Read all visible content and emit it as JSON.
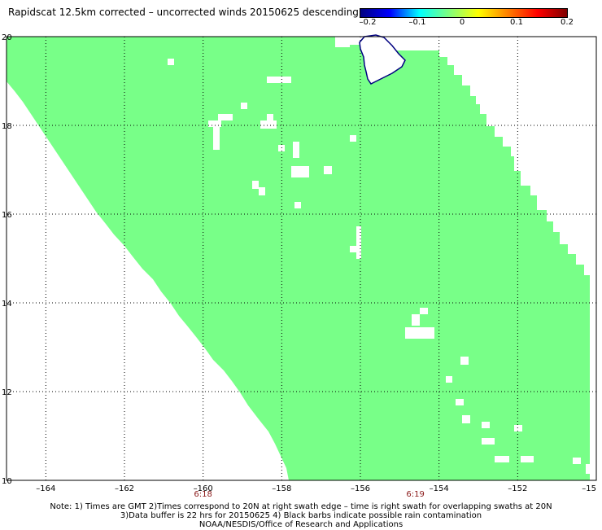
{
  "title": "Rapidscat 12.5km corrected – uncorrected winds 20150625 descending",
  "colorbar": {
    "labels": [
      "–0.2",
      "–0.1",
      "0",
      "0.1",
      "0.2"
    ],
    "gradient": [
      "#00007f",
      "#0000ff",
      "#00ffff",
      "#7fff7f",
      "#ffff00",
      "#ff7f00",
      "#ff0000",
      "#7f0000"
    ]
  },
  "colors": {
    "swath": "#78ff88",
    "land_outline": "#000080"
  },
  "map": {
    "lon_range": [
      -165,
      -150
    ],
    "lat_range": [
      10,
      20
    ],
    "x_ticks": [
      "–164",
      "–162",
      "–160",
      "–158",
      "–156",
      "–154",
      "–152",
      "–15"
    ],
    "y_ticks": [
      "10",
      "12",
      "14",
      "16",
      "18",
      "20"
    ],
    "time_labels": [
      {
        "text": "6:18",
        "lon": -160
      },
      {
        "text": "6:19",
        "lon": -154.6
      }
    ]
  },
  "notes": [
    "Note: 1) Times are GMT 2)Times correspond to 20N at right swath edge – time is right swath for overlapping swaths at 20N",
    "3)Data buffer is 22 hrs for 20150625 4) Black barbs indicate possible rain contamination",
    "NOAA/NESDIS/Office of Research and Applications"
  ]
}
